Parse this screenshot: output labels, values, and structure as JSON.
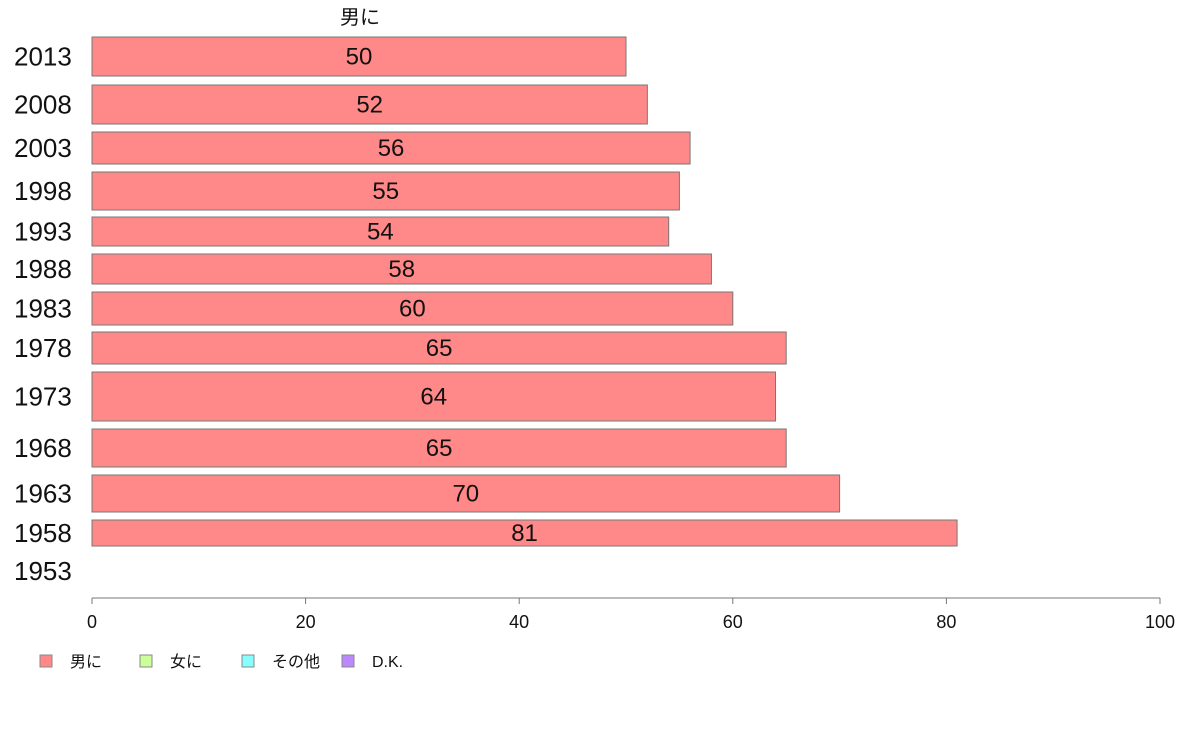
{
  "chart_data": {
    "type": "bar",
    "orientation": "horizontal",
    "categories": [
      "2013",
      "2008",
      "2003",
      "1998",
      "1993",
      "1988",
      "1983",
      "1978",
      "1973",
      "1968",
      "1963",
      "1958",
      "1953"
    ],
    "series": [
      {
        "name": "男に",
        "values": [
          50,
          52,
          56,
          55,
          54,
          58,
          60,
          65,
          64,
          65,
          70,
          81,
          null
        ],
        "color": "#ff8888"
      }
    ],
    "value_labels": [
      "50",
      "52",
      "56",
      "55",
      "54",
      "58",
      "60",
      "65",
      "64",
      "65",
      "70",
      "81",
      ""
    ],
    "xlim": [
      0,
      100
    ],
    "xticks": [
      0,
      20,
      40,
      60,
      80,
      100
    ],
    "legend": {
      "placement": "bottom-left",
      "items": [
        {
          "label": "男に",
          "color": "#ff8888"
        },
        {
          "label": "女に",
          "color": "#ccff99"
        },
        {
          "label": "その他",
          "color": "#88ffff"
        },
        {
          "label": "D.K.",
          "color": "#bb88ff"
        }
      ]
    },
    "grid": false
  }
}
